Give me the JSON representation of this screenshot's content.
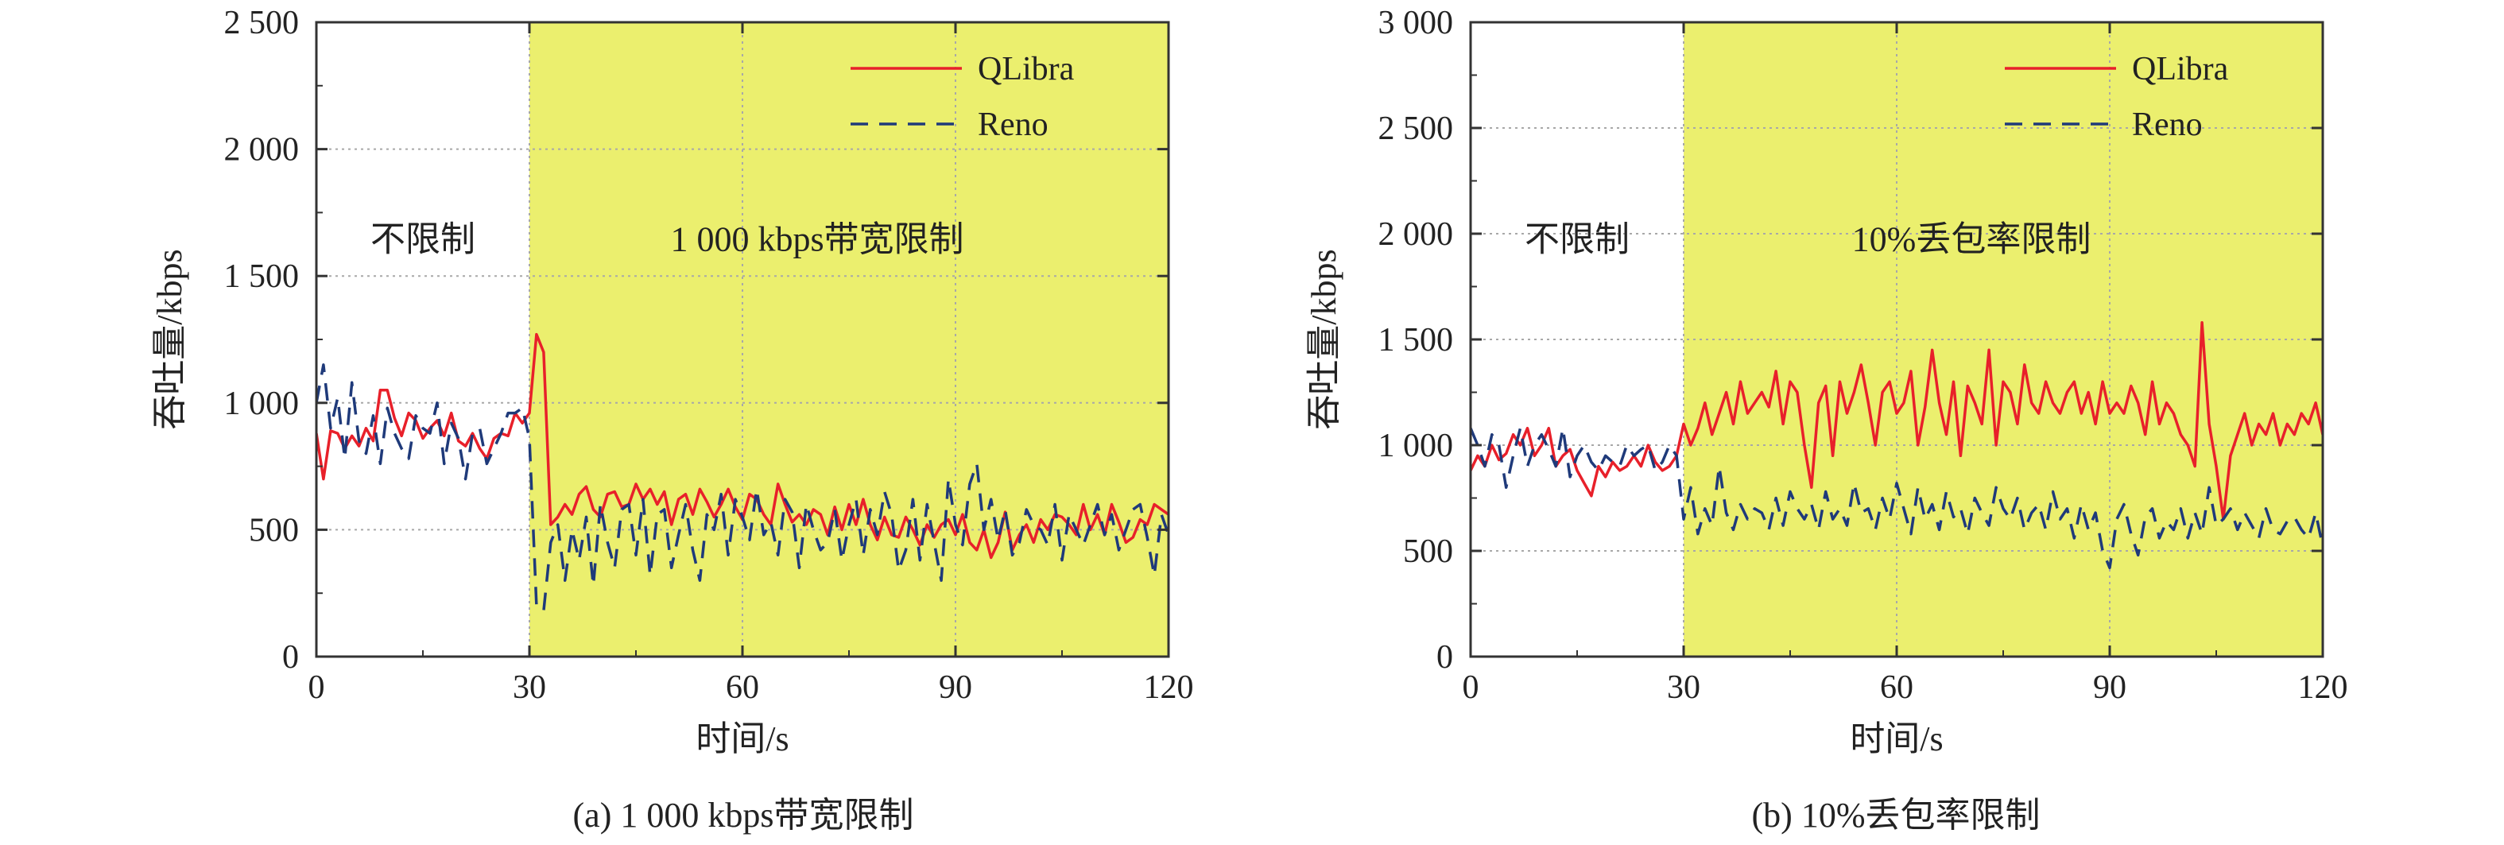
{
  "chart_data": [
    {
      "type": "line",
      "caption": "(a)  1 000 kbps带宽限制",
      "xlabel": "时间/s",
      "ylabel": "吞吐量/kbps",
      "xlim": [
        0,
        120
      ],
      "ylim": [
        0,
        2500
      ],
      "xticks": [
        0,
        30,
        60,
        90,
        120
      ],
      "xtick_labels": [
        "0",
        "30",
        "60",
        "90",
        "120"
      ],
      "yticks": [
        0,
        500,
        1000,
        1500,
        2000,
        2500
      ],
      "ytick_labels": [
        "0",
        "500",
        "1 000",
        "1 500",
        "2 000",
        "2 500"
      ],
      "grid": true,
      "legend_position": "top-right",
      "shaded_region": {
        "x_start": 30,
        "x_end": 120,
        "color": "#ebef6e"
      },
      "region_labels": {
        "before": "不限制",
        "after": "1 000 kbps带宽限制"
      },
      "series": [
        {
          "name": "QLibra",
          "color": "#e8202a",
          "style": "solid",
          "x": [
            0,
            1,
            2,
            3,
            4,
            5,
            6,
            7,
            8,
            9,
            10,
            11,
            12,
            13,
            14,
            15,
            16,
            17,
            18,
            19,
            20,
            21,
            22,
            23,
            24,
            25,
            26,
            27,
            28,
            29,
            30,
            31,
            32,
            33,
            34,
            35,
            36,
            37,
            38,
            39,
            40,
            41,
            42,
            43,
            44,
            45,
            46,
            47,
            48,
            49,
            50,
            51,
            52,
            53,
            54,
            55,
            56,
            57,
            58,
            59,
            60,
            61,
            62,
            63,
            64,
            65,
            66,
            67,
            68,
            69,
            70,
            71,
            72,
            73,
            74,
            75,
            76,
            77,
            78,
            79,
            80,
            81,
            82,
            83,
            84,
            85,
            86,
            87,
            88,
            89,
            90,
            91,
            92,
            93,
            94,
            95,
            96,
            97,
            98,
            99,
            100,
            101,
            102,
            103,
            104,
            105,
            106,
            107,
            108,
            109,
            110,
            111,
            112,
            113,
            114,
            115,
            116,
            117,
            118,
            119,
            120
          ],
          "values": [
            880,
            700,
            890,
            880,
            820,
            870,
            830,
            900,
            850,
            1050,
            1050,
            940,
            870,
            960,
            930,
            860,
            900,
            930,
            870,
            960,
            850,
            830,
            880,
            820,
            780,
            860,
            880,
            870,
            960,
            920,
            960,
            1270,
            1200,
            520,
            550,
            600,
            560,
            640,
            670,
            580,
            550,
            640,
            650,
            590,
            600,
            680,
            620,
            660,
            600,
            650,
            520,
            620,
            640,
            560,
            660,
            610,
            550,
            600,
            660,
            590,
            540,
            640,
            620,
            560,
            520,
            680,
            600,
            530,
            560,
            520,
            580,
            560,
            480,
            590,
            500,
            600,
            520,
            620,
            520,
            460,
            550,
            480,
            470,
            550,
            500,
            440,
            520,
            470,
            520,
            540,
            480,
            560,
            450,
            420,
            500,
            390,
            450,
            570,
            420,
            480,
            520,
            450,
            540,
            500,
            560,
            550,
            520,
            480,
            600,
            500,
            560,
            480,
            600,
            530,
            450,
            470,
            540,
            520,
            600,
            580,
            560
          ]
        },
        {
          "name": "Reno",
          "color": "#1f3a7a",
          "style": "dashed",
          "x": [
            0,
            1,
            2,
            3,
            4,
            5,
            6,
            7,
            8,
            9,
            10,
            11,
            12,
            13,
            14,
            15,
            16,
            17,
            18,
            19,
            20,
            21,
            22,
            23,
            24,
            25,
            26,
            27,
            28,
            29,
            30,
            31,
            32,
            33,
            34,
            35,
            36,
            37,
            38,
            39,
            40,
            41,
            42,
            43,
            44,
            45,
            46,
            47,
            48,
            49,
            50,
            51,
            52,
            53,
            54,
            55,
            56,
            57,
            58,
            59,
            60,
            61,
            62,
            63,
            64,
            65,
            66,
            67,
            68,
            69,
            70,
            71,
            72,
            73,
            74,
            75,
            76,
            77,
            78,
            79,
            80,
            81,
            82,
            83,
            84,
            85,
            86,
            87,
            88,
            89,
            90,
            91,
            92,
            93,
            94,
            95,
            96,
            97,
            98,
            99,
            100,
            101,
            102,
            103,
            104,
            105,
            106,
            107,
            108,
            109,
            110,
            111,
            112,
            113,
            114,
            115,
            116,
            117,
            118,
            119,
            120
          ],
          "values": [
            1000,
            1150,
            900,
            1020,
            780,
            1080,
            850,
            800,
            950,
            760,
            980,
            880,
            820,
            780,
            950,
            900,
            880,
            1000,
            760,
            920,
            860,
            700,
            880,
            900,
            760,
            820,
            880,
            960,
            960,
            980,
            860,
            200,
            180,
            450,
            520,
            300,
            500,
            380,
            550,
            280,
            600,
            450,
            350,
            580,
            600,
            400,
            620,
            320,
            560,
            580,
            350,
            480,
            600,
            420,
            300,
            560,
            500,
            640,
            400,
            620,
            550,
            460,
            660,
            480,
            530,
            400,
            620,
            570,
            350,
            600,
            500,
            420,
            450,
            580,
            380,
            520,
            620,
            400,
            580,
            480,
            650,
            560,
            340,
            420,
            620,
            380,
            600,
            450,
            300,
            700,
            520,
            440,
            680,
            760,
            500,
            620,
            460,
            580,
            400,
            450,
            580,
            520,
            500,
            440,
            600,
            380,
            560,
            500,
            440,
            520,
            600,
            480,
            560,
            420,
            500,
            580,
            600,
            470,
            320,
            560,
            480
          ]
        }
      ]
    },
    {
      "type": "line",
      "caption": "(b)  10%丢包率限制",
      "xlabel": "时间/s",
      "ylabel": "吞吐量/kbps",
      "xlim": [
        0,
        120
      ],
      "ylim": [
        0,
        3000
      ],
      "xticks": [
        0,
        30,
        60,
        90,
        120
      ],
      "xtick_labels": [
        "0",
        "30",
        "60",
        "90",
        "120"
      ],
      "yticks": [
        0,
        500,
        1000,
        1500,
        2000,
        2500,
        3000
      ],
      "ytick_labels": [
        "0",
        "500",
        "1 000",
        "1 500",
        "2 000",
        "2 500",
        "3 000"
      ],
      "grid": true,
      "legend_position": "top-right",
      "shaded_region": {
        "x_start": 30,
        "x_end": 120,
        "color": "#ebef6e"
      },
      "region_labels": {
        "before": "不限制",
        "after": "10%丢包率限制"
      },
      "series": [
        {
          "name": "QLibra",
          "color": "#e8202a",
          "style": "solid",
          "x": [
            0,
            1,
            2,
            3,
            4,
            5,
            6,
            7,
            8,
            9,
            10,
            11,
            12,
            13,
            14,
            15,
            16,
            17,
            18,
            19,
            20,
            21,
            22,
            23,
            24,
            25,
            26,
            27,
            28,
            29,
            30,
            31,
            32,
            33,
            34,
            35,
            36,
            37,
            38,
            39,
            40,
            41,
            42,
            43,
            44,
            45,
            46,
            47,
            48,
            49,
            50,
            51,
            52,
            53,
            54,
            55,
            56,
            57,
            58,
            59,
            60,
            61,
            62,
            63,
            64,
            65,
            66,
            67,
            68,
            69,
            70,
            71,
            72,
            73,
            74,
            75,
            76,
            77,
            78,
            79,
            80,
            81,
            82,
            83,
            84,
            85,
            86,
            87,
            88,
            89,
            90,
            91,
            92,
            93,
            94,
            95,
            96,
            97,
            98,
            99,
            100,
            101,
            102,
            103,
            104,
            105,
            106,
            107,
            108,
            109,
            110,
            111,
            112,
            113,
            114,
            115,
            116,
            117,
            118,
            119,
            120
          ],
          "values": [
            880,
            950,
            900,
            1000,
            930,
            960,
            1050,
            1000,
            1080,
            950,
            1000,
            1080,
            900,
            950,
            980,
            880,
            820,
            760,
            900,
            850,
            920,
            880,
            900,
            950,
            900,
            1000,
            920,
            880,
            900,
            950,
            1100,
            1000,
            1080,
            1200,
            1050,
            1150,
            1250,
            1100,
            1300,
            1150,
            1200,
            1250,
            1180,
            1350,
            1100,
            1300,
            1250,
            1000,
            800,
            1200,
            1280,
            950,
            1300,
            1150,
            1250,
            1380,
            1200,
            1000,
            1250,
            1300,
            1150,
            1200,
            1350,
            1000,
            1180,
            1450,
            1200,
            1050,
            1300,
            950,
            1280,
            1200,
            1100,
            1450,
            1000,
            1300,
            1250,
            1100,
            1380,
            1200,
            1150,
            1300,
            1200,
            1150,
            1250,
            1300,
            1150,
            1250,
            1100,
            1300,
            1150,
            1200,
            1150,
            1280,
            1200,
            1050,
            1300,
            1100,
            1200,
            1150,
            1050,
            1000,
            900,
            1580,
            1100,
            900,
            650,
            950,
            1050,
            1150,
            1000,
            1100,
            1050,
            1150,
            1000,
            1100,
            1050,
            1150,
            1100,
            1200,
            1050
          ]
        },
        {
          "name": "Reno",
          "color": "#1f3a7a",
          "style": "dashed",
          "x": [
            0,
            1,
            2,
            3,
            4,
            5,
            6,
            7,
            8,
            9,
            10,
            11,
            12,
            13,
            14,
            15,
            16,
            17,
            18,
            19,
            20,
            21,
            22,
            23,
            24,
            25,
            26,
            27,
            28,
            29,
            30,
            31,
            32,
            33,
            34,
            35,
            36,
            37,
            38,
            39,
            40,
            41,
            42,
            43,
            44,
            45,
            46,
            47,
            48,
            49,
            50,
            51,
            52,
            53,
            54,
            55,
            56,
            57,
            58,
            59,
            60,
            61,
            62,
            63,
            64,
            65,
            66,
            67,
            68,
            69,
            70,
            71,
            72,
            73,
            74,
            75,
            76,
            77,
            78,
            79,
            80,
            81,
            82,
            83,
            84,
            85,
            86,
            87,
            88,
            89,
            90,
            91,
            92,
            93,
            94,
            95,
            96,
            97,
            98,
            99,
            100,
            101,
            102,
            103,
            104,
            105,
            106,
            107,
            108,
            109,
            110,
            111,
            112,
            113,
            114,
            115,
            116,
            117,
            118,
            119,
            120
          ],
          "values": [
            1080,
            1000,
            900,
            1050,
            1000,
            800,
            950,
            1080,
            900,
            1000,
            1050,
            980,
            900,
            1080,
            850,
            950,
            1000,
            920,
            880,
            950,
            920,
            900,
            1000,
            950,
            980,
            1000,
            880,
            920,
            1000,
            950,
            650,
            800,
            580,
            700,
            620,
            900,
            680,
            600,
            720,
            650,
            700,
            680,
            600,
            750,
            620,
            780,
            700,
            650,
            720,
            600,
            780,
            650,
            700,
            620,
            820,
            680,
            700,
            600,
            750,
            650,
            820,
            700,
            580,
            800,
            650,
            720,
            600,
            780,
            660,
            700,
            580,
            750,
            680,
            620,
            800,
            700,
            650,
            750,
            600,
            680,
            720,
            600,
            780,
            650,
            700,
            560,
            720,
            600,
            680,
            500,
            420,
            650,
            720,
            580,
            480,
            660,
            700,
            560,
            640,
            600,
            700,
            560,
            680,
            580,
            800,
            620,
            650,
            700,
            600,
            680,
            620,
            560,
            700,
            600,
            580,
            640,
            660,
            600,
            560,
            680,
            520
          ]
        }
      ]
    }
  ]
}
